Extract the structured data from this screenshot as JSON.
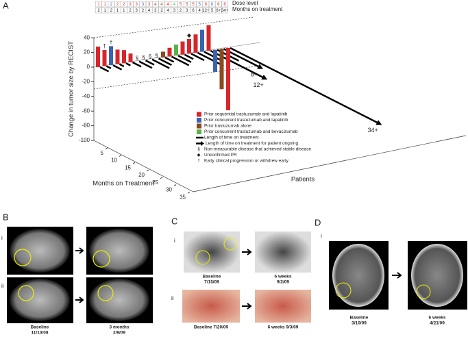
{
  "panel_a": {
    "label": "A",
    "header_dose": "Dose level",
    "header_months": "Months on treatment",
    "y_axis_label": "Change in tumor size by RECIST",
    "yticks": [
      40,
      20,
      0,
      -20,
      -40,
      -60,
      -80,
      -100
    ],
    "x_axis_label": "Months on Treatment",
    "xticks": [
      5,
      10,
      15,
      20,
      25,
      30,
      35
    ],
    "z_axis_label": "Patients",
    "dose_levels": [
      1,
      1,
      2,
      2,
      2,
      3,
      3,
      3,
      3,
      4,
      4,
      4,
      4,
      5,
      5,
      5,
      5,
      6,
      6,
      6,
      6
    ],
    "months": [
      2,
      1,
      2,
      1,
      1,
      2,
      3,
      2,
      4,
      3,
      2,
      4,
      3,
      2,
      3,
      6,
      4,
      {
        "value": 12,
        "label": "12+"
      },
      5,
      {
        "value": 8,
        "label": "8+"
      },
      {
        "value": 34,
        "label": "34+"
      }
    ],
    "bars": [
      {
        "value": 28,
        "color": "#d7262b"
      },
      {
        "value": 22,
        "color": "#d7262b",
        "marker": "†"
      },
      {
        "value": 26,
        "color": "#3a63b0",
        "marker": "†"
      },
      {
        "value": 20,
        "color": "#d7262b"
      },
      {
        "value": 18,
        "color": "#d7262b"
      },
      {
        "value": 12,
        "color": "#d7262b"
      },
      {
        "value": null,
        "color": "#d7262b",
        "marker": "§"
      },
      {
        "value": null,
        "color": "#3a63b0",
        "marker": "§"
      },
      {
        "value": null,
        "color": "#d7262b",
        "marker": "§"
      },
      {
        "value": null,
        "color": "#d7262b",
        "marker": "§"
      },
      {
        "value": 8,
        "color": "#8b4a1e"
      },
      {
        "value": 12,
        "color": "#d7262b"
      },
      {
        "value": 15,
        "color": "#5ab04a"
      },
      {
        "value": 18,
        "color": "#d7262b"
      },
      {
        "value": 20,
        "color": "#d7262b",
        "marker": "◆"
      },
      {
        "value": 25,
        "color": "#d7262b"
      },
      {
        "value": 30,
        "color": "#3a63b0"
      },
      {
        "value": 35,
        "color": "#d7262b"
      },
      {
        "value": -30,
        "color": "#3a63b0"
      },
      {
        "value": -55,
        "color": "#8b4a1e"
      },
      {
        "value": -85,
        "color": "#d7262b"
      }
    ],
    "legend": [
      {
        "label": "Prior sequential trastuzumab and lapatinib",
        "color": "#d7262b"
      },
      {
        "label": "Prior concurrent trastuzumab and lapatinib",
        "color": "#3a63b0"
      },
      {
        "label": "Prior trastuzumab alone",
        "color": "#8b4a1e"
      },
      {
        "label": "Prior concurrent trastuzumab and bevacizumab",
        "color": "#5ab04a"
      }
    ],
    "legend_line": "Length of time on treatment",
    "legend_arrow": "Length of time on treatment for patient ongoing",
    "legend_symbols": [
      {
        "symbol": "§",
        "label": "Non-measurable disease that achieved stable disease"
      },
      {
        "symbol": "◆",
        "label": "Unconfirmed PR"
      },
      {
        "symbol": "†",
        "label": "Early clinical progression or withdrew early"
      }
    ]
  },
  "panel_b": {
    "label": "B",
    "rows": [
      "i",
      "ii"
    ],
    "captions": [
      [
        "Baseline",
        "11/10/08"
      ],
      [
        "3 months",
        "2/9/09"
      ]
    ]
  },
  "panel_c": {
    "label": "C",
    "rows": [
      "i",
      "ii"
    ],
    "captions_i": [
      "Baseline",
      "7/15/09",
      "6 weeks",
      "9/2/09"
    ],
    "captions_ii": [
      "Baseline 7/20/09",
      "6 weeks 9/3/09"
    ]
  },
  "panel_d": {
    "label": "D",
    "rows": [
      "i"
    ],
    "captions": [
      [
        "Baseline",
        "3/10/09"
      ],
      [
        "6 weeks",
        "4/21/09"
      ]
    ]
  }
}
